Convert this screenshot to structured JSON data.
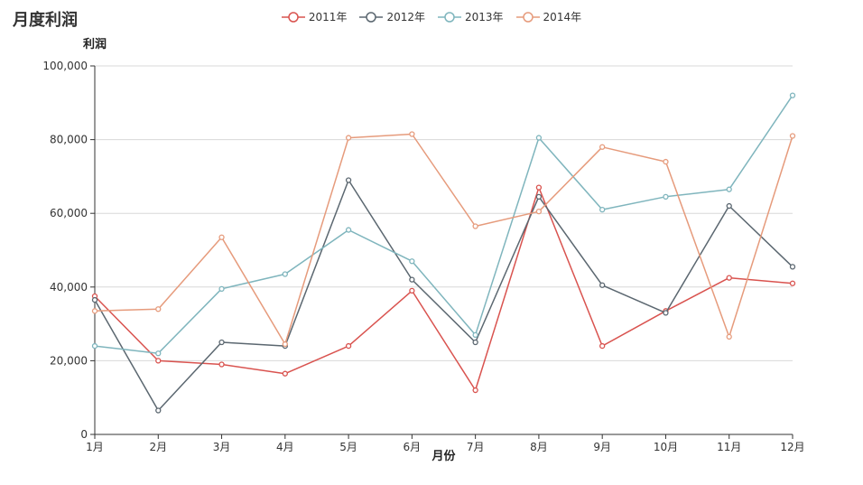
{
  "page": {
    "title": "月度利润"
  },
  "chart_data": {
    "type": "line",
    "title": "月度利润",
    "xlabel": "月份",
    "ylabel": "利润",
    "ylim": [
      0,
      100000
    ],
    "yticks": [
      "0",
      "20,000",
      "40,000",
      "60,000",
      "80,000",
      "100,000"
    ],
    "ytick_values": [
      0,
      20000,
      40000,
      60000,
      80000,
      100000
    ],
    "categories": [
      "1月",
      "2月",
      "3月",
      "4月",
      "5月",
      "6月",
      "7月",
      "8月",
      "9月",
      "10月",
      "11月",
      "12月"
    ],
    "grid": true,
    "legend_position": "top-center",
    "series": [
      {
        "name": "2011年",
        "color": "#d9534f",
        "values": [
          37500,
          20000,
          19000,
          16500,
          24000,
          39000,
          12000,
          67000,
          24000,
          33500,
          42500,
          41000
        ]
      },
      {
        "name": "2012年",
        "color": "#5b6770",
        "values": [
          36500,
          6500,
          25000,
          24000,
          69000,
          42000,
          25000,
          64500,
          40500,
          33000,
          62000,
          45500
        ]
      },
      {
        "name": "2013年",
        "color": "#7fb5bd",
        "values": [
          24000,
          22000,
          39500,
          43500,
          55500,
          47000,
          27000,
          80500,
          61000,
          64500,
          66500,
          92000
        ]
      },
      {
        "name": "2014年",
        "color": "#e69b7c",
        "values": [
          33500,
          34000,
          53500,
          24500,
          80500,
          81500,
          56500,
          60500,
          78000,
          74000,
          26500,
          81000
        ]
      }
    ]
  }
}
